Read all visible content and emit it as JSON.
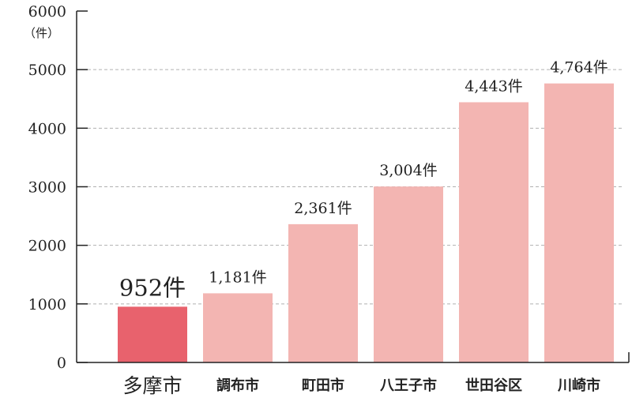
{
  "chart_data": {
    "type": "bar",
    "unit_label": "（件）",
    "categories": [
      "多摩市",
      "調布市",
      "町田市",
      "八王子市",
      "世田谷区",
      "川崎市"
    ],
    "values": [
      952,
      1181,
      2361,
      3004,
      4443,
      4764
    ],
    "value_labels": [
      "952件",
      "1,181件",
      "2,361件",
      "3,004件",
      "4,443件",
      "4,764件"
    ],
    "highlight_index": 0,
    "ylim": [
      0,
      6000
    ],
    "yticks": [
      0,
      1000,
      2000,
      3000,
      4000,
      5000,
      6000
    ],
    "grid": true,
    "colors": {
      "highlight_bar": "#e8626d",
      "bar": "#f3b5b2",
      "highlight_text": "#e35d67",
      "text": "#222222",
      "grid": "#b0b0b0"
    }
  }
}
